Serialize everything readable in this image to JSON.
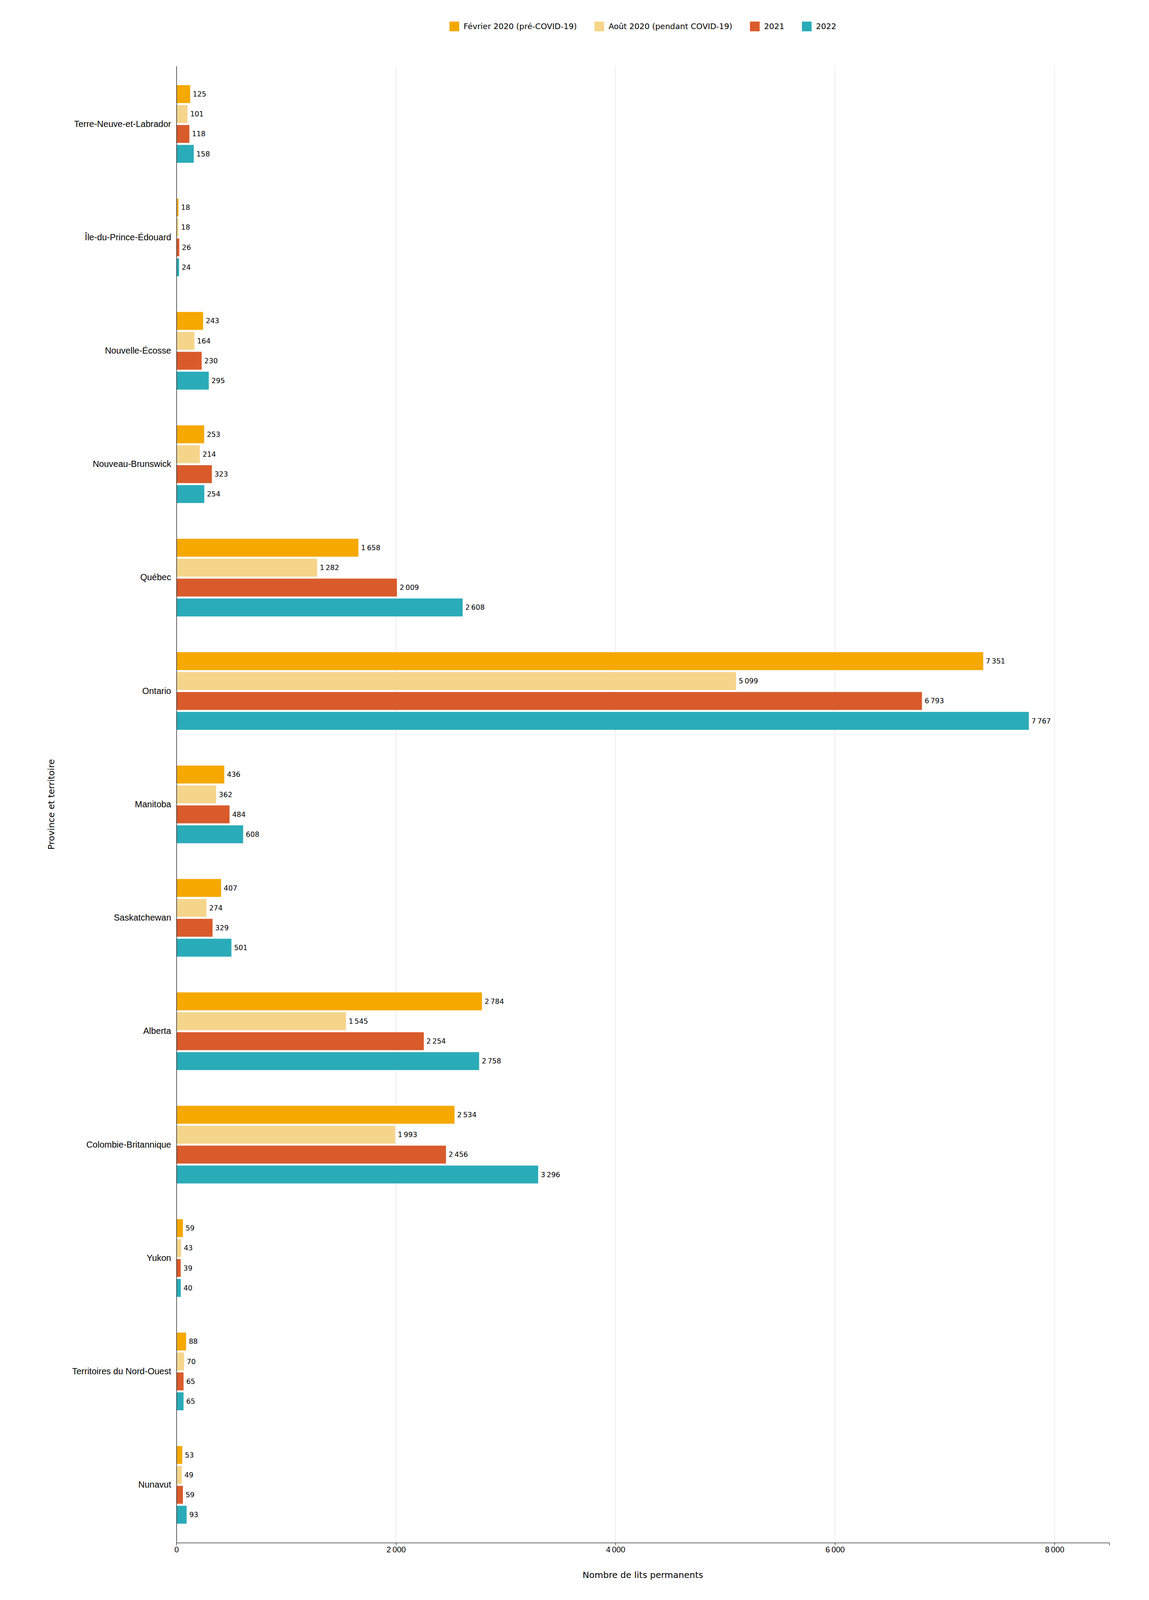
{
  "chart_data": {
    "type": "bar",
    "orientation": "horizontal",
    "categories": [
      "Nunavut",
      "Territoires du Nord-Ouest",
      "Yukon",
      "Colombie-Britannique",
      "Alberta",
      "Saskatchewan",
      "Manitoba",
      "Ontario",
      "Québec",
      "Nouveau-Brunswick",
      "Nouvelle-Écosse",
      "Île-du-Prince-Édouard",
      "Terre-Neuve-et-Labrador"
    ],
    "series": [
      {
        "name": "Février 2020 (pré-COVID-19)",
        "color": "#F5A800",
        "values": [
          53,
          88,
          59,
          2534,
          2784,
          407,
          436,
          7351,
          1658,
          253,
          243,
          18,
          125
        ],
        "value_labels": [
          "53",
          "88",
          "59",
          "2 534",
          "2 784",
          "407",
          "436",
          "7 351",
          "1 658",
          "253",
          "243",
          "18",
          "125"
        ]
      },
      {
        "name": "Août 2020 (pendant COVID-19)",
        "color": "#F5D58A",
        "values": [
          49,
          70,
          43,
          1993,
          1545,
          274,
          362,
          5099,
          1282,
          214,
          164,
          18,
          101
        ],
        "value_labels": [
          "49",
          "70",
          "43",
          "1 993",
          "1 545",
          "274",
          "362",
          "5 099",
          "1 282",
          "214",
          "164",
          "18",
          "101"
        ]
      },
      {
        "name": "2021",
        "color": "#D95B2B",
        "values": [
          59,
          65,
          39,
          2456,
          2254,
          329,
          484,
          6793,
          2009,
          323,
          230,
          26,
          118
        ],
        "value_labels": [
          "59",
          "65",
          "39",
          "2 456",
          "2 254",
          "329",
          "484",
          "6 793",
          "2 009",
          "323",
          "230",
          "26",
          "118"
        ]
      },
      {
        "name": "2022",
        "color": "#2AACB8",
        "values": [
          93,
          65,
          40,
          3296,
          2758,
          501,
          608,
          7767,
          2608,
          254,
          295,
          24,
          158
        ],
        "value_labels": [
          "93",
          "65",
          "40",
          "3 296",
          "2 758",
          "501",
          "608",
          "7 767",
          "2 608",
          "254",
          "295",
          "24",
          "158"
        ]
      }
    ],
    "xlabel": "Nombre de lits permanents",
    "ylabel": "Province et territoire",
    "xlim": [
      0,
      8500
    ],
    "xticks": [
      0,
      {
        "value": 2000,
        "label": "2 000"
      },
      {
        "value": 4000,
        "label": "4 000"
      },
      {
        "value": 6000,
        "label": "6 000"
      },
      {
        "value": 8000,
        "label": "8 000"
      }
    ],
    "grid": true,
    "legend": "top",
    "data_labels": true
  }
}
